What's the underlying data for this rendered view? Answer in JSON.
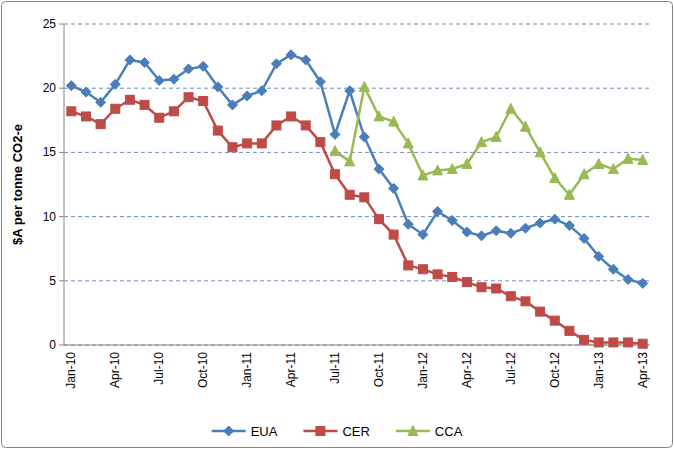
{
  "chart_data": {
    "type": "line",
    "y_label": "$A per tonne CO2-e",
    "categories": [
      "Jan-10",
      null,
      null,
      "Apr-10",
      null,
      null,
      "Jul-10",
      null,
      null,
      "Oct-10",
      null,
      null,
      "Jan-11",
      null,
      null,
      "Apr-11",
      null,
      null,
      "Jul-11",
      null,
      null,
      "Oct-11",
      null,
      null,
      "Jan-12",
      null,
      null,
      "Apr-12",
      null,
      null,
      "Jul-12",
      null,
      null,
      "Oct-12",
      null,
      null,
      "Jan-13",
      null,
      null,
      "Apr-13"
    ],
    "series": [
      {
        "name": "EUA",
        "color": "#4a7ebb",
        "marker": "diamond",
        "line_style": "solid",
        "values": [
          20.2,
          19.7,
          18.9,
          20.3,
          22.2,
          22.0,
          20.6,
          20.7,
          21.5,
          21.7,
          20.1,
          18.7,
          19.4,
          19.8,
          21.9,
          22.6,
          22.2,
          20.5,
          16.4,
          19.8,
          16.2,
          13.7,
          12.2,
          9.4,
          8.6,
          10.4,
          9.7,
          8.8,
          8.5,
          8.9,
          8.7,
          9.1,
          9.5,
          9.8,
          9.3,
          8.3,
          6.9,
          5.9,
          5.1,
          4.8
        ]
      },
      {
        "name": "CER",
        "color": "#be4b48",
        "marker": "square",
        "line_style": "solid",
        "values": [
          18.2,
          17.8,
          17.2,
          18.4,
          19.1,
          18.7,
          17.7,
          18.2,
          19.3,
          19.0,
          16.7,
          15.4,
          15.7,
          15.7,
          17.1,
          17.8,
          17.1,
          15.8,
          13.3,
          11.7,
          11.5,
          9.8,
          8.6,
          6.2,
          5.9,
          5.5,
          5.3,
          4.9,
          4.5,
          4.4,
          3.8,
          3.4,
          2.6,
          1.9,
          1.1,
          0.4,
          0.2,
          0.2,
          0.2,
          0.1
        ]
      },
      {
        "name": "CCA",
        "color": "#98b954",
        "marker": "triangle",
        "line_style": "solid",
        "values": [
          null,
          null,
          null,
          null,
          null,
          null,
          null,
          null,
          null,
          null,
          null,
          null,
          null,
          null,
          null,
          null,
          null,
          null,
          15.1,
          14.3,
          20.1,
          17.8,
          17.4,
          15.7,
          13.2,
          13.6,
          13.7,
          14.1,
          15.8,
          16.2,
          18.4,
          17.0,
          15.0,
          13.0,
          11.7,
          13.3,
          14.1,
          13.7,
          14.5,
          14.4
        ]
      }
    ],
    "ylim": [
      0,
      25
    ],
    "yticks": [
      0,
      5,
      10,
      15,
      20,
      25
    ],
    "grid": true,
    "legend": "bottom"
  }
}
